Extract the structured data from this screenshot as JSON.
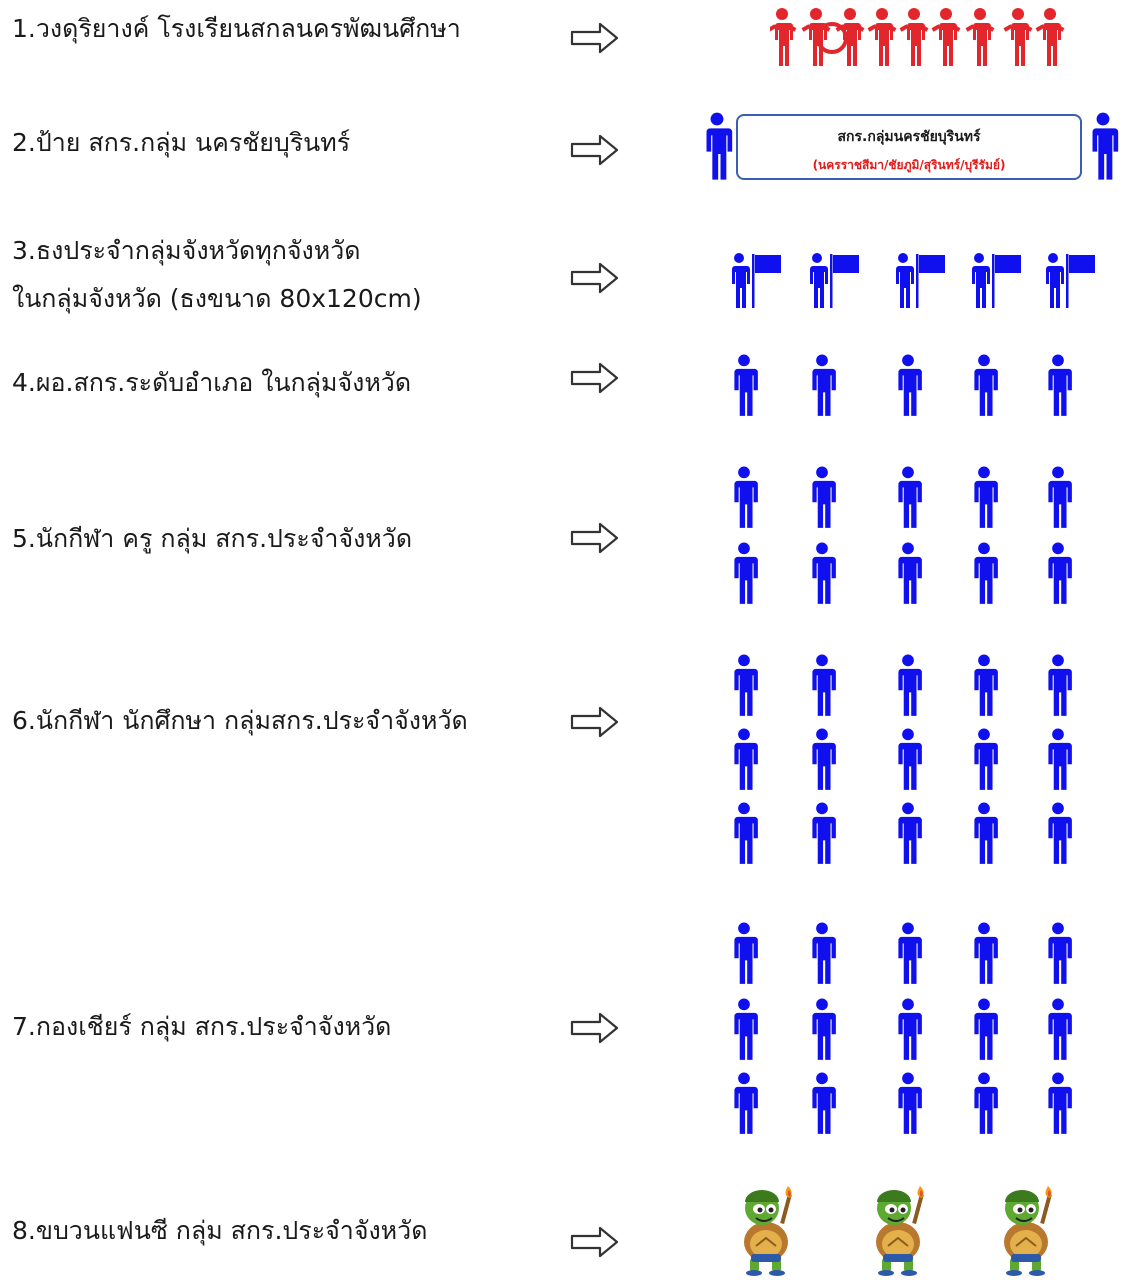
{
  "items": [
    {
      "label": "1.วงดุริยางค์ โรงเรียนสกลนครพัฒนศึกษา"
    },
    {
      "label": "2.ป้าย สกร.กลุ่ม นครชัยบุรินทร์"
    },
    {
      "label": "3.ธงประจำกลุ่มจังหวัดทุกจังหวัด",
      "label2": "ในกลุ่มจังหวัด (ธงขนาด 80x120cm)"
    },
    {
      "label": "4.ผอ.สกร.ระดับอำเภอ ในกลุ่มจังหวัด"
    },
    {
      "label": "5.นักกีฬา ครู กลุ่ม สกร.ประจำจังหวัด"
    },
    {
      "label": "6.นักกีฬา นักศึกษา กลุ่มสกร.ประจำจังหวัด"
    },
    {
      "label": "7.กองเชียร์ กลุ่ม สกร.ประจำจังหวัด"
    },
    {
      "label": "8.ขบวนแฟนซี กลุ่ม สกร.ประจำจังหวัด"
    }
  ],
  "sign": {
    "line1": "สกร.กลุ่มนครชัยบุรินทร์",
    "line2": "(นครราชสีมา/ชัยภูมิ/สุรินทร์/บุรีรัมย์)"
  },
  "colors": {
    "person": "#1010ee",
    "band": "#e3262b",
    "sign_border": "#3a5fb0",
    "sign_text_red": "#e21b1b"
  },
  "icons": {
    "arrow": "outline-right-arrow-icon",
    "person": "person-icon",
    "flag": "flag-bearer-icon",
    "band": "marching-band-icon",
    "mascot": "turtle-mascot-icon"
  }
}
